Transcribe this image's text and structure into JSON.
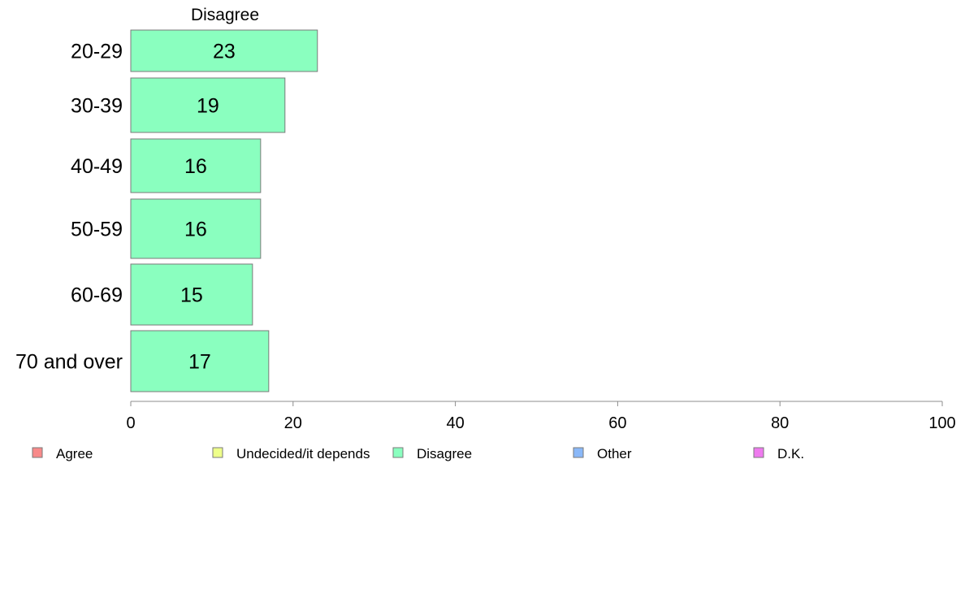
{
  "chart_data": {
    "type": "bar",
    "orientation": "horizontal",
    "title": "Disagree",
    "categories": [
      "20-29",
      "30-39",
      "40-49",
      "50-59",
      "60-69",
      "70 and over"
    ],
    "series": [
      {
        "name": "Disagree",
        "values": [
          23,
          19,
          16,
          16,
          15,
          17
        ]
      }
    ],
    "data_labels": [
      "23",
      "19",
      "16",
      "16",
      "15",
      "17"
    ],
    "xlim": [
      0,
      100
    ],
    "x_ticks": [
      0,
      20,
      40,
      60,
      80,
      100
    ],
    "x_tick_labels": [
      "0",
      "20",
      "40",
      "60",
      "80",
      "100"
    ],
    "grid": false,
    "legend_position": "bottom",
    "legend": [
      {
        "label": "Agree",
        "color": "#f88a8a"
      },
      {
        "label": "Undecided/it depends",
        "color": "#eeff8a"
      },
      {
        "label": "Disagree",
        "color": "#8affbf"
      },
      {
        "label": "Other",
        "color": "#8ab8f8"
      },
      {
        "label": "D.K.",
        "color": "#ee7aee"
      }
    ],
    "bar_color": "#8affbf",
    "bar_stroke": "#7a7a7a",
    "axis_color": "#8c8c8c"
  }
}
